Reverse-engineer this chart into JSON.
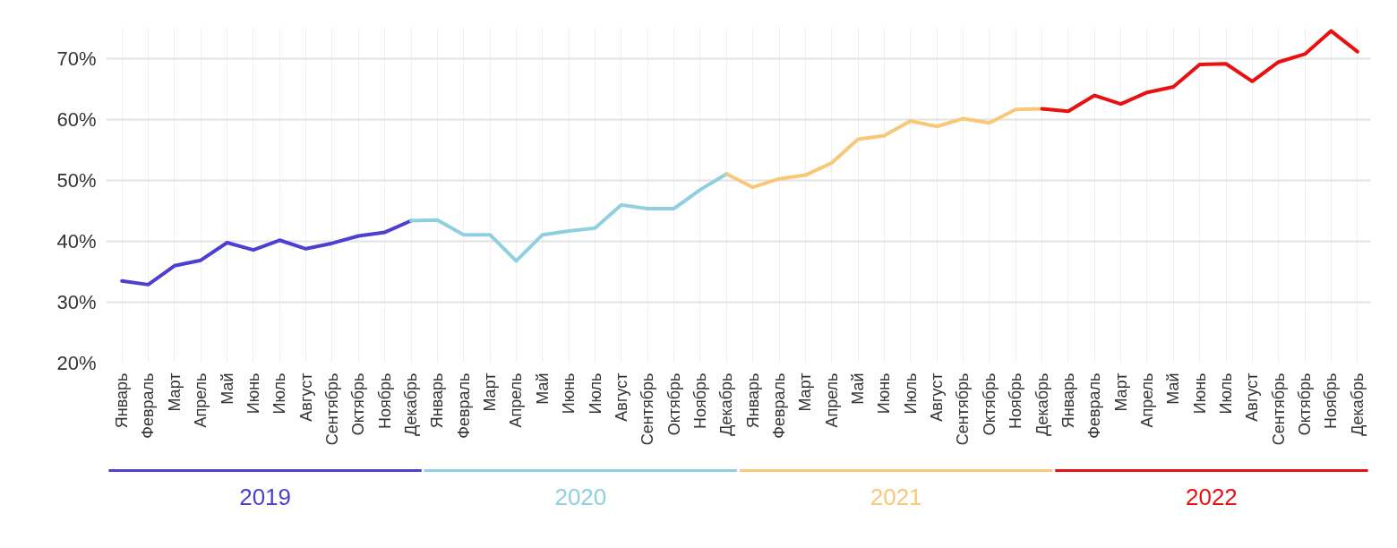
{
  "chart_data": {
    "type": "line",
    "categories": [
      "Январь",
      "Февраль",
      "Март",
      "Апрель",
      "Май",
      "Июнь",
      "Июль",
      "Август",
      "Сентябрь",
      "Октябрь",
      "Ноябрь",
      "Декабрь",
      "Январь",
      "Февраль",
      "Март",
      "Апрель",
      "Май",
      "Июнь",
      "Июль",
      "Август",
      "Сентябрь",
      "Октябрь",
      "Ноябрь",
      "Декабрь",
      "Январь",
      "Февраль",
      "Март",
      "Апрель",
      "Май",
      "Июнь",
      "Июль",
      "Август",
      "Сентябрь",
      "Октябрь",
      "Ноябрь",
      "Декабрь",
      "Январь",
      "Февраль",
      "Март",
      "Апрель",
      "Май",
      "Июнь",
      "Июль",
      "Август",
      "Сентябрь",
      "Октябрь",
      "Ноябрь",
      "Декабрь"
    ],
    "series": [
      {
        "name": "2019",
        "color": "#4f3fd0",
        "values": [
          33.5,
          32.9,
          36.0,
          36.9,
          39.8,
          38.6,
          40.2,
          38.8,
          39.7,
          40.9,
          41.5,
          43.4,
          null,
          null,
          null,
          null,
          null,
          null,
          null,
          null,
          null,
          null,
          null,
          null,
          null,
          null,
          null,
          null,
          null,
          null,
          null,
          null,
          null,
          null,
          null,
          null,
          null,
          null,
          null,
          null,
          null,
          null,
          null,
          null,
          null,
          null,
          null,
          null
        ]
      },
      {
        "name": "2020",
        "color": "#8ecfe0",
        "values": [
          null,
          null,
          null,
          null,
          null,
          null,
          null,
          null,
          null,
          null,
          null,
          43.4,
          43.5,
          41.1,
          41.1,
          36.8,
          41.1,
          41.7,
          42.2,
          46.0,
          45.4,
          45.4,
          48.5,
          51.1,
          null,
          null,
          null,
          null,
          null,
          null,
          null,
          null,
          null,
          null,
          null,
          null,
          null,
          null,
          null,
          null,
          null,
          null,
          null,
          null,
          null,
          null,
          null,
          null
        ]
      },
      {
        "name": "2021",
        "color": "#f8c878",
        "values": [
          null,
          null,
          null,
          null,
          null,
          null,
          null,
          null,
          null,
          null,
          null,
          null,
          null,
          null,
          null,
          null,
          null,
          null,
          null,
          null,
          null,
          null,
          null,
          51.1,
          48.9,
          50.3,
          50.9,
          52.9,
          56.8,
          57.4,
          59.8,
          58.9,
          60.2,
          59.5,
          61.7,
          61.8,
          null,
          null,
          null,
          null,
          null,
          null,
          null,
          null,
          null,
          null,
          null,
          null
        ]
      },
      {
        "name": "2022",
        "color": "#e81010",
        "values": [
          null,
          null,
          null,
          null,
          null,
          null,
          null,
          null,
          null,
          null,
          null,
          null,
          null,
          null,
          null,
          null,
          null,
          null,
          null,
          null,
          null,
          null,
          null,
          null,
          null,
          null,
          null,
          null,
          null,
          null,
          null,
          null,
          null,
          null,
          null,
          61.8,
          61.4,
          64.0,
          62.6,
          64.5,
          65.4,
          69.1,
          69.2,
          66.3,
          69.5,
          70.8,
          74.6,
          71.2
        ]
      }
    ],
    "ylim": [
      20,
      75.2
    ],
    "yticks": [
      {
        "value": 20,
        "label": "20%"
      },
      {
        "value": 30,
        "label": "30%"
      },
      {
        "value": 40,
        "label": "40%"
      },
      {
        "value": 50,
        "label": "50%"
      },
      {
        "value": 60,
        "label": "60%"
      },
      {
        "value": 70,
        "label": "70%"
      }
    ],
    "grid": true,
    "legend": "bottom",
    "line_style": "solid"
  }
}
